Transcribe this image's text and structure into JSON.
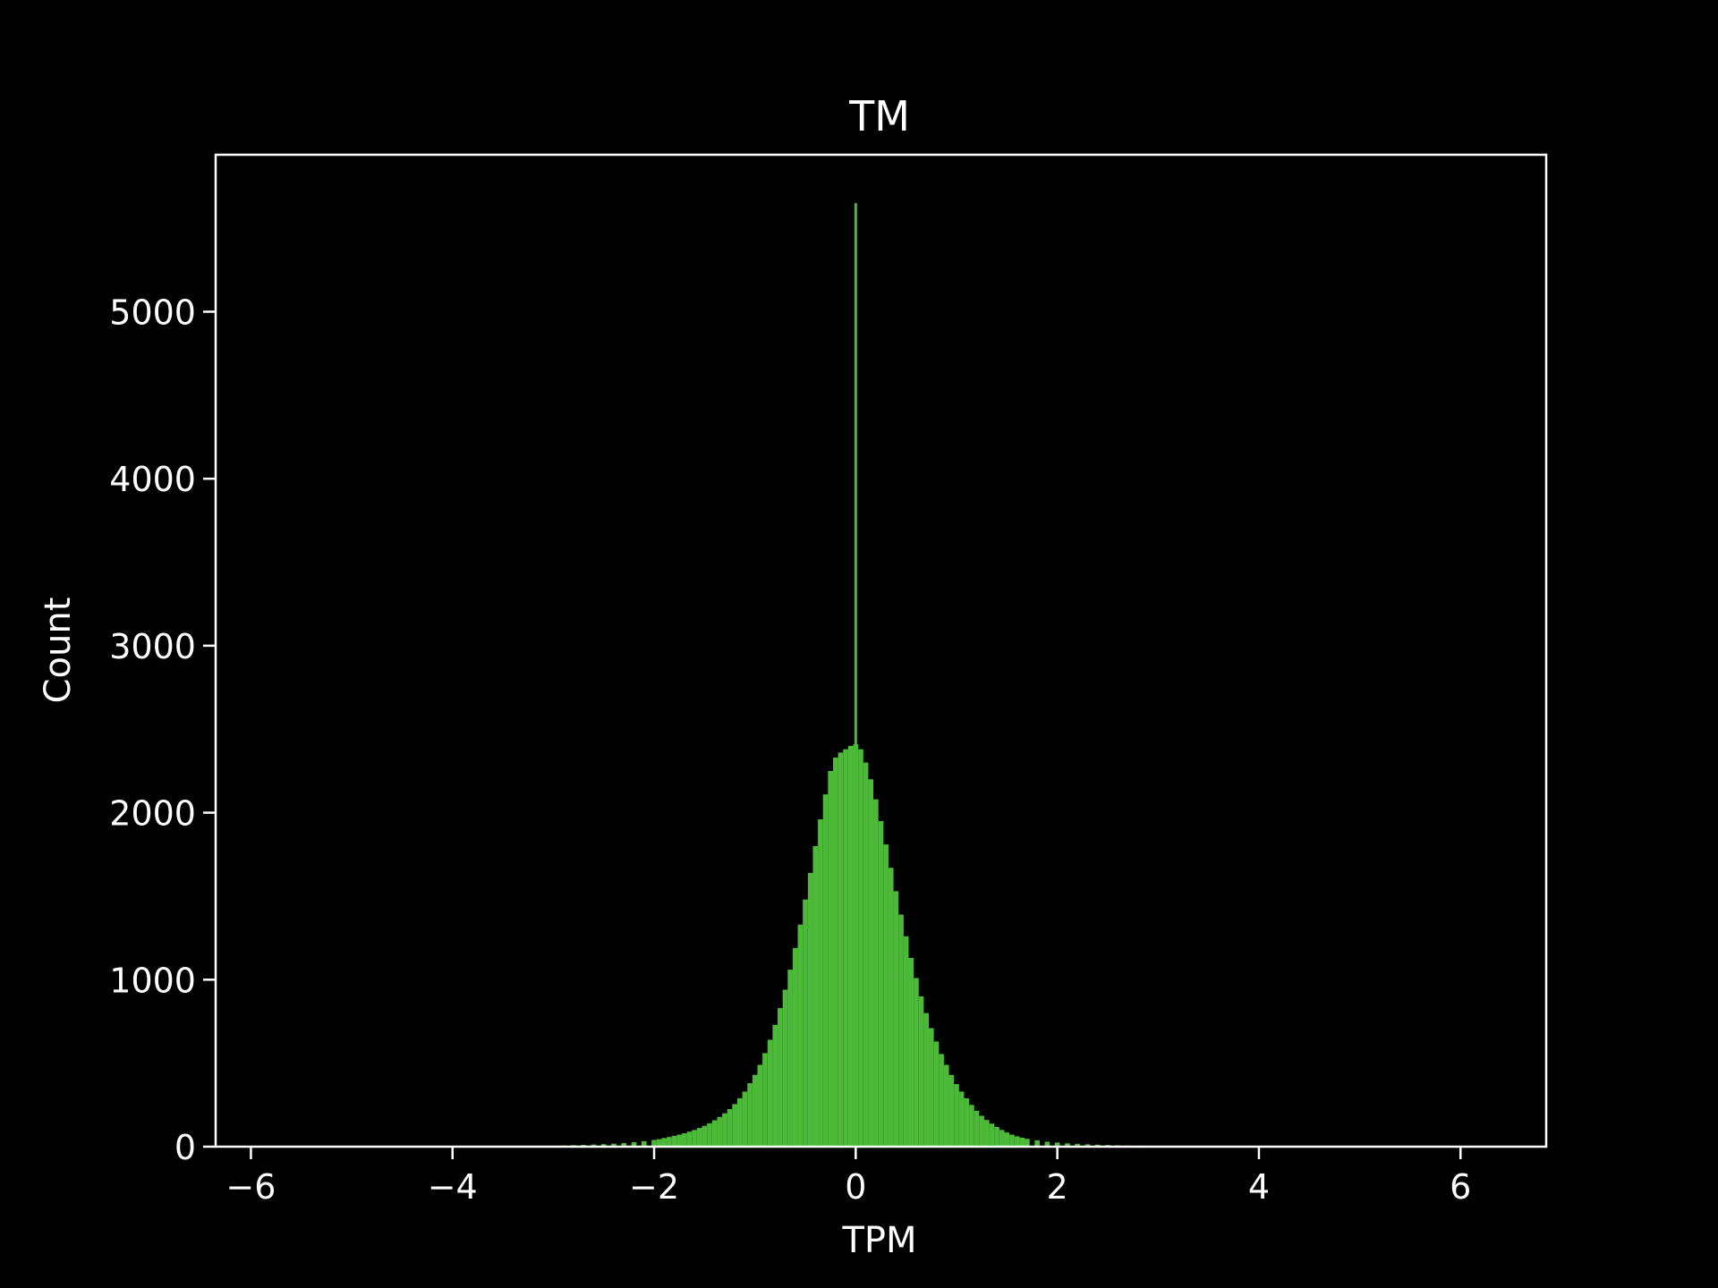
{
  "chart_data": {
    "type": "bar",
    "title": "TM",
    "xlabel": "TPM",
    "ylabel": "Count",
    "xlim": [
      -6.35,
      6.85
    ],
    "ylim": [
      0,
      5940
    ],
    "xticks": [
      -6,
      -4,
      -2,
      0,
      2,
      4,
      6
    ],
    "xtick_labels": [
      "−6",
      "−4",
      "−2",
      "0",
      "2",
      "4",
      "6"
    ],
    "yticks": [
      0,
      1000,
      2000,
      3000,
      4000,
      5000
    ],
    "ytick_labels": [
      "0",
      "1000",
      "2000",
      "3000",
      "4000",
      "5000"
    ],
    "bin_width": 0.05,
    "bins": {
      "x": [
        -3.0,
        -2.9,
        -2.8,
        -2.7,
        -2.6,
        -2.5,
        -2.4,
        -2.3,
        -2.2,
        -2.1,
        -2.0,
        -1.95,
        -1.9,
        -1.85,
        -1.8,
        -1.75,
        -1.7,
        -1.65,
        -1.6,
        -1.55,
        -1.5,
        -1.45,
        -1.4,
        -1.35,
        -1.3,
        -1.25,
        -1.2,
        -1.15,
        -1.1,
        -1.05,
        -1.0,
        -0.95,
        -0.9,
        -0.85,
        -0.8,
        -0.75,
        -0.7,
        -0.65,
        -0.6,
        -0.55,
        -0.5,
        -0.45,
        -0.4,
        -0.35,
        -0.3,
        -0.25,
        -0.2,
        -0.15,
        -0.1,
        -0.05,
        0.0,
        0.05,
        0.1,
        0.15,
        0.2,
        0.25,
        0.3,
        0.35,
        0.4,
        0.45,
        0.5,
        0.55,
        0.6,
        0.65,
        0.7,
        0.75,
        0.8,
        0.85,
        0.9,
        0.95,
        1.0,
        1.05,
        1.1,
        1.15,
        1.2,
        1.25,
        1.3,
        1.35,
        1.4,
        1.45,
        1.5,
        1.55,
        1.6,
        1.65,
        1.7,
        1.8,
        1.9,
        2.0,
        2.1,
        2.2,
        2.3,
        2.4,
        2.5,
        2.6,
        2.7,
        2.8,
        2.9
      ],
      "counts": [
        5,
        7,
        9,
        11,
        13,
        15,
        18,
        22,
        27,
        33,
        40,
        45,
        52,
        58,
        65,
        72,
        80,
        90,
        100,
        112,
        125,
        140,
        158,
        178,
        200,
        225,
        255,
        290,
        330,
        380,
        430,
        490,
        560,
        640,
        730,
        830,
        940,
        1060,
        1190,
        1330,
        1480,
        1640,
        1800,
        1960,
        2110,
        2250,
        2330,
        2360,
        2380,
        2400,
        2410,
        2380,
        2300,
        2200,
        2080,
        1950,
        1810,
        1670,
        1530,
        1390,
        1260,
        1130,
        1010,
        900,
        800,
        710,
        630,
        555,
        490,
        430,
        375,
        330,
        290,
        250,
        215,
        185,
        160,
        138,
        118,
        100,
        85,
        72,
        62,
        54,
        47,
        38,
        30,
        25,
        20,
        17,
        14,
        12,
        10,
        8,
        7,
        6,
        5
      ]
    },
    "spike": {
      "x": 0.0,
      "value": 5650
    },
    "bar_color": "#4cba38",
    "background": "#000000",
    "axes_color": "#ffffff",
    "grid": false
  }
}
